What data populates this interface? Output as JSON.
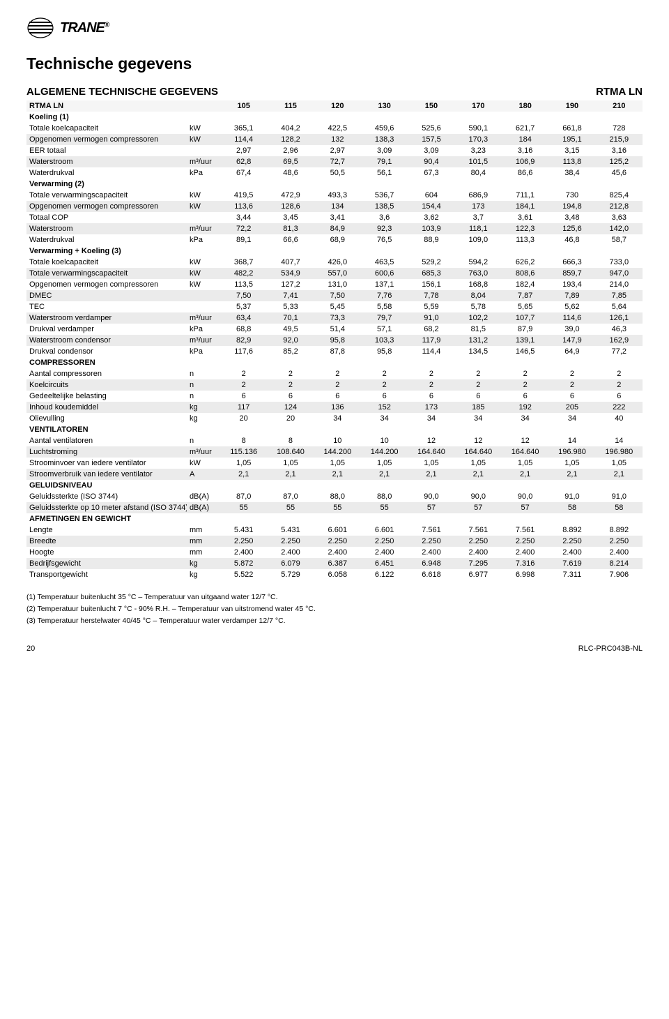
{
  "logo": {
    "brand": "TRANE",
    "reg": "®"
  },
  "title": "Technische gegevens",
  "section_title": "ALGEMENE TECHNISCHE GEGEVENS",
  "model_name": "RTMA LN",
  "header_row": {
    "label": "RTMA LN",
    "cols": [
      "105",
      "115",
      "120",
      "130",
      "150",
      "170",
      "180",
      "190",
      "210"
    ]
  },
  "groups": [
    {
      "name": "Koeling (1)",
      "rows": [
        {
          "shade": false,
          "label": "Totale koelcapaciteit",
          "unit": "kW",
          "vals": [
            "365,1",
            "404,2",
            "422,5",
            "459,6",
            "525,6",
            "590,1",
            "621,7",
            "661,8",
            "728"
          ]
        },
        {
          "shade": true,
          "label": "Opgenomen vermogen compressoren",
          "unit": "kW",
          "vals": [
            "114,4",
            "128,2",
            "132",
            "138,3",
            "157,5",
            "170,3",
            "184",
            "195,1",
            "215,9"
          ]
        },
        {
          "shade": false,
          "label": "EER totaal",
          "unit": "",
          "vals": [
            "2,97",
            "2,96",
            "2,97",
            "3,09",
            "3,09",
            "3,23",
            "3,16",
            "3,15",
            "3,16"
          ]
        },
        {
          "shade": true,
          "label": "Waterstroom",
          "unit": "m³/uur",
          "vals": [
            "62,8",
            "69,5",
            "72,7",
            "79,1",
            "90,4",
            "101,5",
            "106,9",
            "113,8",
            "125,2"
          ]
        },
        {
          "shade": false,
          "label": "Waterdrukval",
          "unit": "kPa",
          "vals": [
            "67,4",
            "48,6",
            "50,5",
            "56,1",
            "67,3",
            "80,4",
            "86,6",
            "38,4",
            "45,6"
          ]
        }
      ]
    },
    {
      "name": "Verwarming (2)",
      "rows": [
        {
          "shade": false,
          "label": "Totale verwarmingscapaciteit",
          "unit": "kW",
          "vals": [
            "419,5",
            "472,9",
            "493,3",
            "536,7",
            "604",
            "686,9",
            "711,1",
            "730",
            "825,4"
          ]
        },
        {
          "shade": true,
          "label": "Opgenomen vermogen compressoren",
          "unit": "kW",
          "vals": [
            "113,6",
            "128,6",
            "134",
            "138,5",
            "154,4",
            "173",
            "184,1",
            "194,8",
            "212,8"
          ]
        },
        {
          "shade": false,
          "label": "Totaal COP",
          "unit": "",
          "vals": [
            "3,44",
            "3,45",
            "3,41",
            "3,6",
            "3,62",
            "3,7",
            "3,61",
            "3,48",
            "3,63"
          ]
        },
        {
          "shade": true,
          "label": "Waterstroom",
          "unit": "m³/uur",
          "vals": [
            "72,2",
            "81,3",
            "84,9",
            "92,3",
            "103,9",
            "118,1",
            "122,3",
            "125,6",
            "142,0"
          ]
        },
        {
          "shade": false,
          "label": "Waterdrukval",
          "unit": "kPa",
          "vals": [
            "89,1",
            "66,6",
            "68,9",
            "76,5",
            "88,9",
            "109,0",
            "113,3",
            "46,8",
            "58,7"
          ]
        }
      ]
    },
    {
      "name": "Verwarming + Koeling (3)",
      "rows": [
        {
          "shade": false,
          "label": "Totale koelcapaciteit",
          "unit": "kW",
          "vals": [
            "368,7",
            "407,7",
            "426,0",
            "463,5",
            "529,2",
            "594,2",
            "626,2",
            "666,3",
            "733,0"
          ]
        },
        {
          "shade": true,
          "label": "Totale verwarmingscapaciteit",
          "unit": "kW",
          "vals": [
            "482,2",
            "534,9",
            "557,0",
            "600,6",
            "685,3",
            "763,0",
            "808,6",
            "859,7",
            "947,0"
          ]
        },
        {
          "shade": false,
          "label": "Opgenomen vermogen compressoren",
          "unit": "kW",
          "vals": [
            "113,5",
            "127,2",
            "131,0",
            "137,1",
            "156,1",
            "168,8",
            "182,4",
            "193,4",
            "214,0"
          ]
        },
        {
          "shade": true,
          "label": "DMEC",
          "unit": "",
          "vals": [
            "7,50",
            "7,41",
            "7,50",
            "7,76",
            "7,78",
            "8,04",
            "7,87",
            "7,89",
            "7,85"
          ]
        },
        {
          "shade": false,
          "label": "TEC",
          "unit": "",
          "vals": [
            "5,37",
            "5,33",
            "5,45",
            "5,58",
            "5,59",
            "5,78",
            "5,65",
            "5,62",
            "5,64"
          ]
        },
        {
          "shade": true,
          "label": "Waterstroom verdamper",
          "unit": "m³/uur",
          "vals": [
            "63,4",
            "70,1",
            "73,3",
            "79,7",
            "91,0",
            "102,2",
            "107,7",
            "114,6",
            "126,1"
          ]
        },
        {
          "shade": false,
          "label": "Drukval verdamper",
          "unit": "kPa",
          "vals": [
            "68,8",
            "49,5",
            "51,4",
            "57,1",
            "68,2",
            "81,5",
            "87,9",
            "39,0",
            "46,3"
          ]
        },
        {
          "shade": true,
          "label": "Waterstroom condensor",
          "unit": "m³/uur",
          "vals": [
            "82,9",
            "92,0",
            "95,8",
            "103,3",
            "117,9",
            "131,2",
            "139,1",
            "147,9",
            "162,9"
          ]
        },
        {
          "shade": false,
          "label": "Drukval condensor",
          "unit": "kPa",
          "vals": [
            "117,6",
            "85,2",
            "87,8",
            "95,8",
            "114,4",
            "134,5",
            "146,5",
            "64,9",
            "77,2"
          ]
        }
      ]
    },
    {
      "name": "COMPRESSOREN",
      "rows": [
        {
          "shade": false,
          "label": "Aantal compressoren",
          "unit": "n",
          "vals": [
            "2",
            "2",
            "2",
            "2",
            "2",
            "2",
            "2",
            "2",
            "2"
          ]
        },
        {
          "shade": true,
          "label": "Koelcircuits",
          "unit": "n",
          "vals": [
            "2",
            "2",
            "2",
            "2",
            "2",
            "2",
            "2",
            "2",
            "2"
          ]
        },
        {
          "shade": false,
          "label": "Gedeeltelijke belasting",
          "unit": "n",
          "vals": [
            "6",
            "6",
            "6",
            "6",
            "6",
            "6",
            "6",
            "6",
            "6"
          ]
        },
        {
          "shade": true,
          "label": "Inhoud koudemiddel",
          "unit": "kg",
          "vals": [
            "117",
            "124",
            "136",
            "152",
            "173",
            "185",
            "192",
            "205",
            "222"
          ]
        },
        {
          "shade": false,
          "label": "Olievulling",
          "unit": "kg",
          "vals": [
            "20",
            "20",
            "34",
            "34",
            "34",
            "34",
            "34",
            "34",
            "40"
          ]
        }
      ]
    },
    {
      "name": "VENTILATOREN",
      "rows": [
        {
          "shade": false,
          "label": "Aantal ventilatoren",
          "unit": "n",
          "vals": [
            "8",
            "8",
            "10",
            "10",
            "12",
            "12",
            "12",
            "14",
            "14"
          ]
        },
        {
          "shade": true,
          "label": "Luchtstroming",
          "unit": "m³/uur",
          "vals": [
            "115.136",
            "108.640",
            "144.200",
            "144.200",
            "164.640",
            "164.640",
            "164.640",
            "196.980",
            "196.980"
          ]
        },
        {
          "shade": false,
          "label": "Stroominvoer van iedere ventilator",
          "unit": "kW",
          "vals": [
            "1,05",
            "1,05",
            "1,05",
            "1,05",
            "1,05",
            "1,05",
            "1,05",
            "1,05",
            "1,05"
          ]
        },
        {
          "shade": true,
          "label": "Stroomverbruik van iedere ventilator",
          "unit": "A",
          "vals": [
            "2,1",
            "2,1",
            "2,1",
            "2,1",
            "2,1",
            "2,1",
            "2,1",
            "2,1",
            "2,1"
          ]
        }
      ]
    },
    {
      "name": "GELUIDSNIVEAU",
      "rows": [
        {
          "shade": false,
          "label": "Geluidssterkte (ISO 3744)",
          "unit": "dB(A)",
          "vals": [
            "87,0",
            "87,0",
            "88,0",
            "88,0",
            "90,0",
            "90,0",
            "90,0",
            "91,0",
            "91,0"
          ]
        },
        {
          "shade": true,
          "label": "Geluidssterkte op 10 meter afstand (ISO 3744)",
          "unit": "dB(A)",
          "vals": [
            "55",
            "55",
            "55",
            "55",
            "57",
            "57",
            "57",
            "58",
            "58"
          ]
        }
      ]
    },
    {
      "name": "AFMETINGEN EN GEWICHT",
      "rows": [
        {
          "shade": false,
          "label": "Lengte",
          "unit": "mm",
          "vals": [
            "5.431",
            "5.431",
            "6.601",
            "6.601",
            "7.561",
            "7.561",
            "7.561",
            "8.892",
            "8.892"
          ]
        },
        {
          "shade": true,
          "label": "Breedte",
          "unit": "mm",
          "vals": [
            "2.250",
            "2.250",
            "2.250",
            "2.250",
            "2.250",
            "2.250",
            "2.250",
            "2.250",
            "2.250"
          ]
        },
        {
          "shade": false,
          "label": "Hoogte",
          "unit": "mm",
          "vals": [
            "2.400",
            "2.400",
            "2.400",
            "2.400",
            "2.400",
            "2.400",
            "2.400",
            "2.400",
            "2.400"
          ]
        },
        {
          "shade": true,
          "label": "Bedrijfsgewicht",
          "unit": "kg",
          "vals": [
            "5.872",
            "6.079",
            "6.387",
            "6.451",
            "6.948",
            "7.295",
            "7.316",
            "7.619",
            "8.214"
          ]
        },
        {
          "shade": false,
          "label": "Transportgewicht",
          "unit": "kg",
          "vals": [
            "5.522",
            "5.729",
            "6.058",
            "6.122",
            "6.618",
            "6.977",
            "6.998",
            "7.311",
            "7.906"
          ]
        }
      ]
    }
  ],
  "footnotes": [
    "(1) Temperatuur buitenlucht 35 °C – Temperatuur van uitgaand water 12/7 °C.",
    "(2) Temperatuur buitenlucht 7 °C - 90% R.H. – Temperatuur van uitstromend water 45 °C.",
    "(3) Temperatuur herstelwater 40/45 °C – Temperatuur water verdamper 12/7 °C."
  ],
  "footer": {
    "page": "20",
    "doc": "RLC-PRC043B-NL"
  },
  "style": {
    "shade_color": "#ebebeb",
    "header_shade": "#f5f5f5",
    "page_bg": "#ffffff",
    "text_color": "#000000"
  }
}
